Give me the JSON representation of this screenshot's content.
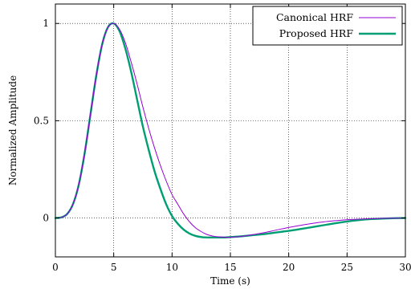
{
  "chart_data": {
    "type": "line",
    "xlabel": "Time (s)",
    "ylabel": "Normalized Amplitude",
    "xlim": [
      0,
      30
    ],
    "ylim": [
      -0.2,
      1.1
    ],
    "x_ticks": [
      0,
      5,
      10,
      15,
      20,
      25,
      30
    ],
    "y_ticks": [
      0,
      0.5,
      1
    ],
    "x_tick_labels": [
      "0",
      "5",
      "10",
      "15",
      "20",
      "25",
      "30"
    ],
    "y_tick_labels": [
      "0",
      "0.5",
      "1"
    ],
    "grid": "dotted",
    "legend_position": "top-right",
    "x": [
      0,
      0.5,
      1,
      1.5,
      2,
      2.5,
      3,
      3.5,
      4,
      4.5,
      5,
      5.5,
      6,
      6.5,
      7,
      7.5,
      8,
      8.5,
      9,
      9.5,
      10,
      10.5,
      11,
      11.5,
      12,
      12.5,
      13,
      13.5,
      14,
      14.5,
      15,
      15.5,
      16,
      16.5,
      17,
      17.5,
      18,
      18.5,
      19,
      19.5,
      20,
      21,
      22,
      23,
      24,
      25,
      26,
      27,
      28,
      29,
      30
    ],
    "series": [
      {
        "name": "Canonical HRF",
        "color": "#9400d3",
        "width": "thin",
        "values": [
          0,
          0.003,
          0.02,
          0.07,
          0.17,
          0.33,
          0.53,
          0.73,
          0.89,
          0.98,
          1.0,
          0.97,
          0.9,
          0.8,
          0.69,
          0.57,
          0.46,
          0.36,
          0.27,
          0.19,
          0.12,
          0.07,
          0.02,
          -0.02,
          -0.05,
          -0.07,
          -0.085,
          -0.093,
          -0.097,
          -0.099,
          -0.099,
          -0.097,
          -0.094,
          -0.09,
          -0.085,
          -0.08,
          -0.074,
          -0.068,
          -0.061,
          -0.055,
          -0.049,
          -0.038,
          -0.028,
          -0.02,
          -0.014,
          -0.009,
          -0.006,
          -0.004,
          -0.002,
          -0.001,
          0
        ]
      },
      {
        "name": "Proposed HRF",
        "color": "#009e73",
        "width": "thick",
        "values": [
          0,
          0.003,
          0.02,
          0.07,
          0.17,
          0.33,
          0.53,
          0.73,
          0.89,
          0.98,
          1.0,
          0.96,
          0.87,
          0.75,
          0.61,
          0.47,
          0.35,
          0.24,
          0.15,
          0.07,
          0.01,
          -0.03,
          -0.06,
          -0.08,
          -0.092,
          -0.098,
          -0.1,
          -0.1,
          -0.1,
          -0.1,
          -0.098,
          -0.096,
          -0.094,
          -0.091,
          -0.088,
          -0.085,
          -0.082,
          -0.078,
          -0.074,
          -0.07,
          -0.066,
          -0.057,
          -0.047,
          -0.037,
          -0.027,
          -0.018,
          -0.011,
          -0.006,
          -0.003,
          -0.001,
          0
        ]
      }
    ]
  }
}
